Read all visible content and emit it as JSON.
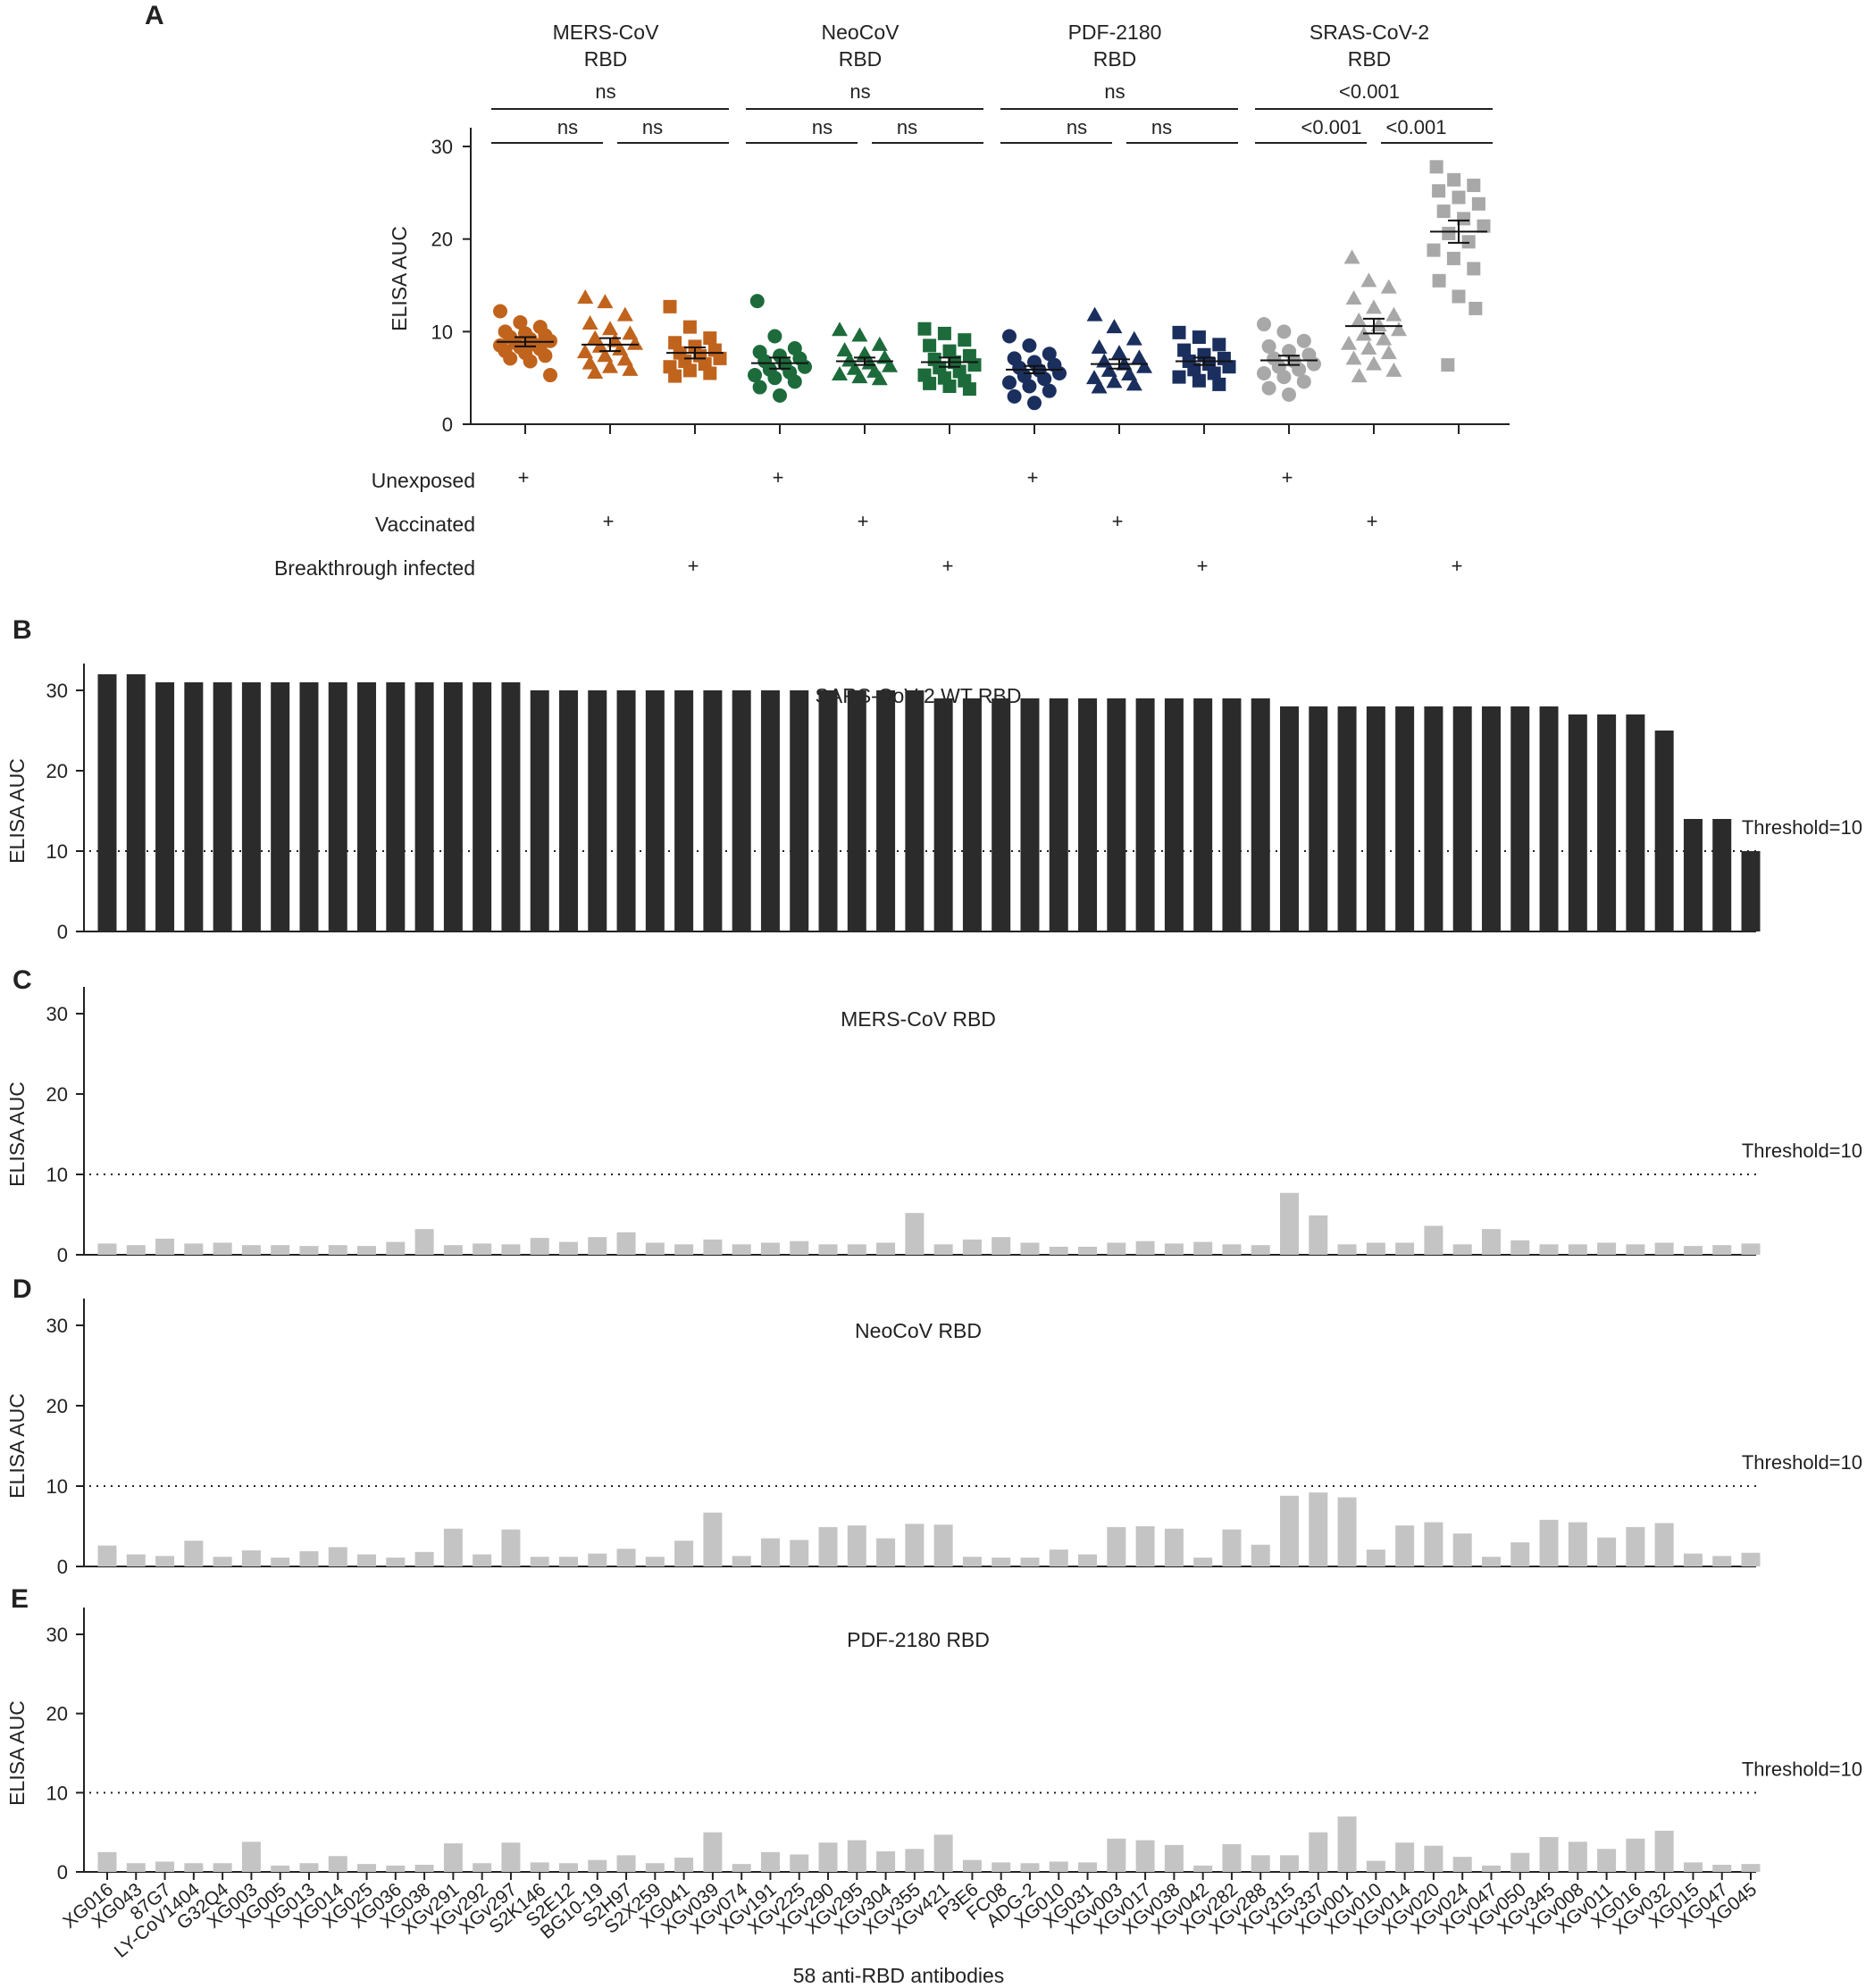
{
  "chart_data": [
    {
      "panel": "A",
      "type": "scatter",
      "ylabel": "ELISA AUC",
      "ylim": [
        0,
        30
      ],
      "yticks": [
        0,
        10,
        20,
        30
      ],
      "conditions": [
        "Unexposed",
        "Vaccinated",
        "Breakthrough infected"
      ],
      "plus_mark": "+",
      "groups": [
        {
          "title": [
            "MERS-CoV",
            "RBD"
          ],
          "color": "#c0631d",
          "overall_sig": "ns",
          "pair_sig": [
            "ns",
            "ns"
          ],
          "series": [
            {
              "marker": "circle",
              "mean": 8.9,
              "sem": 0.5,
              "values": [
                12.2,
                11.0,
                10.5,
                10.0,
                9.8,
                9.6,
                9.4,
                9.2,
                9.0,
                8.8,
                8.6,
                8.5,
                8.3,
                8.1,
                7.9,
                7.7,
                7.4,
                7.1,
                6.8,
                5.3
              ]
            },
            {
              "marker": "triangle",
              "mean": 8.6,
              "sem": 0.7,
              "values": [
                13.7,
                13.2,
                11.8,
                10.9,
                10.3,
                9.8,
                9.3,
                9.0,
                8.7,
                8.4,
                8.1,
                7.8,
                7.4,
                7.0,
                6.6,
                6.2,
                5.9,
                5.6
              ]
            },
            {
              "marker": "square",
              "mean": 7.7,
              "sem": 0.6,
              "values": [
                12.7,
                10.5,
                9.3,
                8.8,
                8.4,
                8.0,
                7.7,
                7.4,
                7.1,
                6.8,
                6.5,
                6.2,
                5.8,
                5.5,
                5.2
              ]
            }
          ]
        },
        {
          "title": [
            "NeoCoV",
            "RBD"
          ],
          "color": "#1d6b3b",
          "overall_sig": "ns",
          "pair_sig": [
            "ns",
            "ns"
          ],
          "series": [
            {
              "marker": "circle",
              "mean": 6.6,
              "sem": 0.6,
              "values": [
                13.3,
                9.5,
                8.2,
                7.8,
                7.4,
                7.1,
                6.8,
                6.5,
                6.2,
                5.9,
                5.6,
                5.3,
                5.0,
                4.6,
                4.0,
                3.1
              ]
            },
            {
              "marker": "triangle",
              "mean": 6.8,
              "sem": 0.4,
              "values": [
                10.2,
                9.6,
                8.6,
                8.0,
                7.6,
                7.2,
                6.9,
                6.6,
                6.3,
                6.0,
                5.7,
                5.4,
                5.1,
                4.9
              ]
            },
            {
              "marker": "square",
              "mean": 6.7,
              "sem": 0.5,
              "values": [
                10.3,
                9.8,
                9.1,
                8.5,
                7.9,
                7.4,
                7.0,
                6.7,
                6.4,
                6.1,
                5.7,
                5.3,
                5.0,
                4.7,
                4.4,
                4.1,
                3.8
              ]
            }
          ]
        },
        {
          "title": [
            "PDF-2180",
            "RBD"
          ],
          "color": "#1b2f5e",
          "overall_sig": "ns",
          "pair_sig": [
            "ns",
            "ns"
          ],
          "series": [
            {
              "marker": "circle",
              "mean": 5.9,
              "sem": 0.4,
              "values": [
                9.5,
                8.5,
                7.6,
                7.1,
                6.7,
                6.4,
                6.1,
                5.8,
                5.5,
                5.2,
                4.9,
                4.5,
                4.1,
                3.6,
                3.0,
                2.3
              ]
            },
            {
              "marker": "triangle",
              "mean": 6.5,
              "sem": 0.5,
              "values": [
                11.8,
                10.5,
                9.2,
                8.3,
                7.7,
                7.2,
                6.8,
                6.5,
                6.2,
                5.8,
                5.4,
                5.0,
                4.6,
                4.3,
                4.0
              ]
            },
            {
              "marker": "square",
              "mean": 6.8,
              "sem": 0.4,
              "values": [
                9.9,
                9.4,
                8.6,
                8.0,
                7.5,
                7.1,
                6.8,
                6.5,
                6.2,
                5.9,
                5.5,
                5.1,
                4.7,
                4.3
              ]
            }
          ]
        },
        {
          "title": [
            "SRAS-CoV-2",
            "RBD"
          ],
          "color": "#a8a8a8",
          "overall_sig": "<0.001",
          "pair_sig": [
            "<0.001",
            "<0.001"
          ],
          "series": [
            {
              "marker": "circle",
              "mean": 6.9,
              "sem": 0.5,
              "values": [
                10.8,
                10.0,
                9.0,
                8.4,
                7.9,
                7.5,
                7.1,
                6.8,
                6.5,
                6.2,
                5.9,
                5.5,
                5.1,
                4.6,
                3.9,
                3.2
              ]
            },
            {
              "marker": "triangle",
              "mean": 10.6,
              "sem": 0.8,
              "values": [
                18.0,
                15.5,
                14.8,
                13.6,
                12.6,
                11.8,
                11.2,
                10.7,
                10.2,
                9.7,
                9.2,
                8.7,
                8.2,
                7.7,
                7.1,
                6.5,
                5.8,
                5.2
              ]
            },
            {
              "marker": "square",
              "mean": 20.8,
              "sem": 1.2,
              "values": [
                27.8,
                26.4,
                25.8,
                25.2,
                24.5,
                23.8,
                23.0,
                22.2,
                21.4,
                20.6,
                19.7,
                18.8,
                17.9,
                16.8,
                15.5,
                13.8,
                12.5,
                6.4
              ]
            }
          ]
        }
      ]
    },
    {
      "panel": "B",
      "type": "bar",
      "title": "SARS-CoV-2 WT RBD",
      "ylabel": "ELISA AUC",
      "ylim": [
        0,
        30
      ],
      "yticks": [
        0,
        10,
        20,
        30
      ],
      "color": "#2b2b2b",
      "threshold": 10,
      "threshold_label": "Threshold=10",
      "values": [
        32,
        32,
        31,
        31,
        31,
        31,
        31,
        31,
        31,
        31,
        31,
        31,
        31,
        31,
        31,
        30,
        30,
        30,
        30,
        30,
        30,
        30,
        30,
        30,
        30,
        30,
        30,
        30,
        30,
        29,
        29,
        29,
        29,
        29,
        29,
        29,
        29,
        29,
        29,
        29,
        29,
        28,
        28,
        28,
        28,
        28,
        28,
        28,
        28,
        28,
        28,
        27,
        27,
        27,
        25,
        14,
        14,
        10
      ]
    },
    {
      "panel": "C",
      "type": "bar",
      "title": "MERS-CoV RBD",
      "ylabel": "ELISA AUC",
      "ylim": [
        0,
        30
      ],
      "yticks": [
        0,
        10,
        20,
        30
      ],
      "color": "#c4c4c4",
      "threshold": 10,
      "threshold_label": "Threshold=10",
      "values": [
        1.4,
        1.2,
        2.0,
        1.4,
        1.5,
        1.2,
        1.2,
        1.1,
        1.2,
        1.1,
        1.6,
        3.2,
        1.2,
        1.4,
        1.3,
        2.1,
        1.6,
        2.2,
        2.8,
        1.5,
        1.3,
        1.9,
        1.3,
        1.5,
        1.7,
        1.3,
        1.3,
        1.5,
        5.2,
        1.3,
        1.9,
        2.2,
        1.5,
        1.0,
        1.0,
        1.5,
        1.7,
        1.4,
        1.6,
        1.3,
        1.2,
        7.7,
        4.9,
        1.3,
        1.5,
        1.5,
        3.6,
        1.3,
        3.2,
        1.8,
        1.3,
        1.3,
        1.5,
        1.3,
        1.5,
        1.1,
        1.2,
        1.4
      ]
    },
    {
      "panel": "D",
      "type": "bar",
      "title": "NeoCoV RBD",
      "ylabel": "ELISA AUC",
      "ylim": [
        0,
        30
      ],
      "yticks": [
        0,
        10,
        20,
        30
      ],
      "color": "#c4c4c4",
      "threshold": 10,
      "threshold_label": "Threshold=10",
      "values": [
        2.6,
        1.5,
        1.3,
        3.2,
        1.2,
        2.0,
        1.1,
        1.9,
        2.4,
        1.5,
        1.1,
        1.8,
        4.7,
        1.5,
        4.6,
        1.2,
        1.2,
        1.6,
        2.2,
        1.2,
        3.2,
        6.7,
        1.3,
        3.5,
        3.3,
        4.9,
        5.1,
        3.5,
        5.3,
        5.2,
        1.2,
        1.1,
        1.1,
        2.1,
        1.5,
        4.9,
        5.0,
        4.7,
        1.1,
        4.6,
        2.7,
        8.8,
        9.2,
        8.6,
        2.1,
        5.1,
        5.5,
        4.1,
        1.2,
        3.0,
        5.8,
        5.5,
        3.6,
        4.9,
        5.4,
        1.6,
        1.3,
        1.7
      ]
    },
    {
      "panel": "E",
      "type": "bar",
      "title": "PDF-2180 RBD",
      "ylabel": "ELISA AUC",
      "ylim": [
        0,
        30
      ],
      "yticks": [
        0,
        10,
        20,
        30
      ],
      "color": "#c4c4c4",
      "threshold": 10,
      "threshold_label": "Threshold=10",
      "xlabel": "58 anti-RBD antibodies",
      "categories": [
        "XG016",
        "XG043",
        "87G7",
        "LY-CoV1404",
        "G32Q4",
        "XG003",
        "XG005",
        "XG013",
        "XG014",
        "XG025",
        "XG036",
        "XG038",
        "XGv291",
        "XGv292",
        "XGv297",
        "S2K146",
        "S2E12",
        "BG10-19",
        "S2H97",
        "S2X259",
        "XG041",
        "XGv039",
        "XGv074",
        "XGv191",
        "XGv225",
        "XGv290",
        "XGv295",
        "XGv304",
        "XGv355",
        "XGv421",
        "P3E6",
        "FC08",
        "ADG-2",
        "XG010",
        "XG031",
        "XGv003",
        "XGv017",
        "XGv038",
        "XGv042",
        "XGv282",
        "XGv288",
        "XGv315",
        "XGv337",
        "XGv001",
        "XGv010",
        "XGv014",
        "XGv020",
        "XGv024",
        "XGv047",
        "XGv050",
        "XGv345",
        "XGv008",
        "XGv011",
        "XG016",
        "XGv032",
        "XG015",
        "XG047",
        "XG045"
      ],
      "values": [
        2.5,
        1.1,
        1.3,
        1.1,
        1.1,
        3.8,
        0.8,
        1.1,
        2.0,
        1.0,
        0.8,
        0.9,
        3.6,
        1.1,
        3.7,
        1.2,
        1.1,
        1.5,
        2.1,
        1.1,
        1.8,
        5.0,
        1.0,
        2.5,
        2.2,
        3.7,
        4.0,
        2.6,
        2.9,
        4.7,
        1.5,
        1.2,
        1.1,
        1.3,
        1.2,
        4.2,
        4.0,
        3.4,
        0.8,
        3.5,
        2.1,
        2.1,
        5.0,
        7.0,
        1.4,
        3.7,
        3.3,
        1.9,
        0.8,
        2.4,
        4.4,
        3.8,
        2.9,
        4.2,
        5.2,
        1.2,
        0.9,
        1.0
      ]
    }
  ],
  "panel_letters": [
    "A",
    "B",
    "C",
    "D",
    "E"
  ]
}
